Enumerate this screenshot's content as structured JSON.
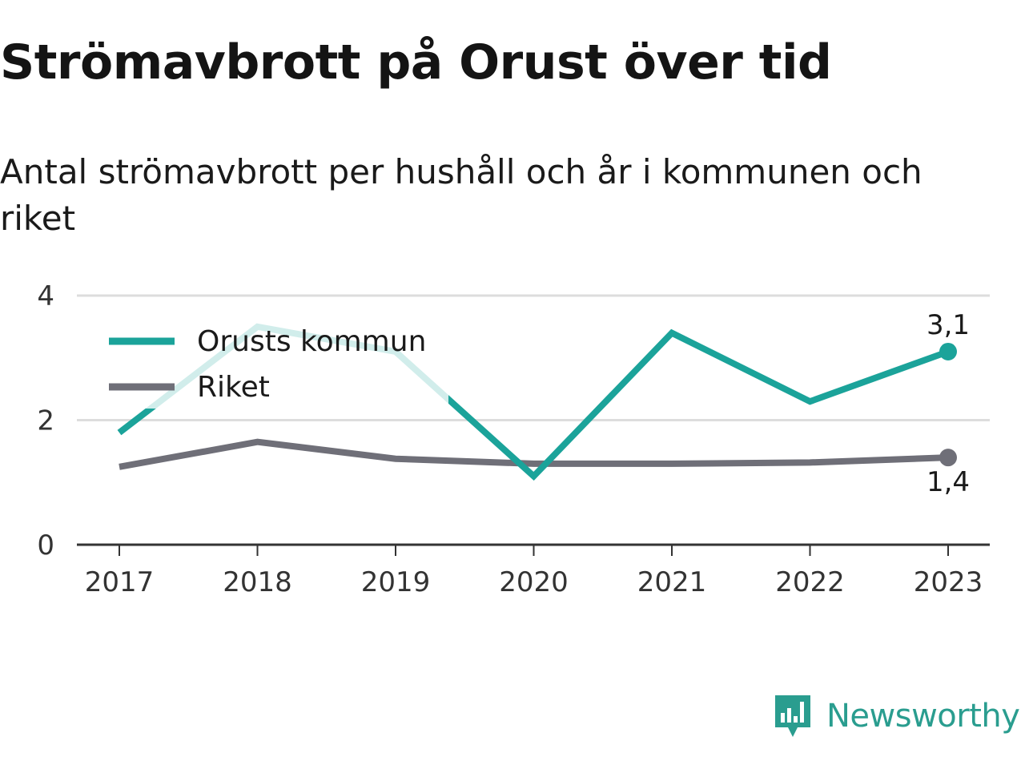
{
  "title": "Strömavbrott på Orust över tid",
  "subtitle": "Antal strömavbrott per hushåll och år i kommunen och riket",
  "brand": "Newsworthy",
  "colors": {
    "orust": "#1ba39a",
    "riket": "#6f6f78",
    "grid": "#dddddd",
    "axis": "#333333",
    "brand": "#2a9d8f"
  },
  "chart_data": {
    "type": "line",
    "title": "Strömavbrott på Orust över tid",
    "subtitle": "Antal strömavbrott per hushåll och år i kommunen och riket",
    "categories": [
      "2017",
      "2018",
      "2019",
      "2020",
      "2021",
      "2022",
      "2023"
    ],
    "yticks": [
      "0",
      "2",
      "4"
    ],
    "ylim": [
      0,
      4
    ],
    "grid": true,
    "legend": "top-left",
    "series": [
      {
        "name": "Orusts kommun",
        "color": "#1ba39a",
        "values": [
          1.8,
          3.5,
          3.1,
          1.1,
          3.4,
          2.3,
          3.1
        ],
        "end_label": "3,1"
      },
      {
        "name": "Riket",
        "color": "#6f6f78",
        "values": [
          1.25,
          1.65,
          1.38,
          1.3,
          1.3,
          1.32,
          1.4
        ],
        "end_label": "1,4"
      }
    ]
  }
}
